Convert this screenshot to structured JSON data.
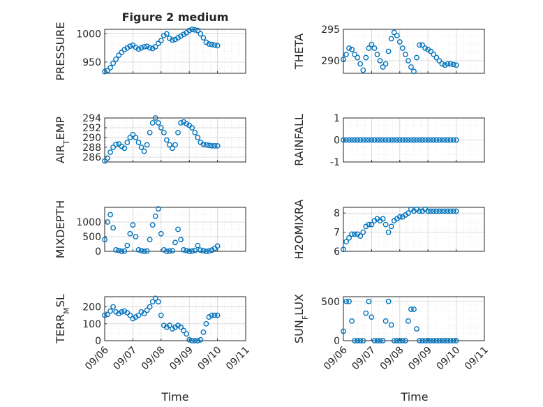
{
  "figure": {
    "title": "Figure 2 medium"
  },
  "xaxis": {
    "ticks": [
      "09/06",
      "09/07",
      "09/08",
      "09/09",
      "09/10",
      "09/11"
    ],
    "label": "Time"
  },
  "chart_data": [
    {
      "type": "scatter",
      "ylabel": "PRESSURE",
      "ylim": [
        930,
        1008
      ],
      "yticks": [
        950,
        1000
      ],
      "ytick_labels": [
        "950",
        "1000"
      ],
      "xlim": [
        0,
        5
      ],
      "grid": true,
      "marker": "o",
      "color": "#0072BD",
      "x": [
        0.0,
        0.1,
        0.2,
        0.3,
        0.4,
        0.5,
        0.6,
        0.7,
        0.8,
        0.9,
        1.0,
        1.1,
        1.2,
        1.3,
        1.4,
        1.5,
        1.6,
        1.7,
        1.8,
        1.9,
        2.0,
        2.1,
        2.2,
        2.3,
        2.4,
        2.5,
        2.6,
        2.7,
        2.8,
        2.9,
        3.0,
        3.1,
        3.2,
        3.3,
        3.4,
        3.5,
        3.6,
        3.7,
        3.8,
        3.9,
        4.0
      ],
      "y": [
        933,
        935,
        940,
        948,
        955,
        962,
        967,
        972,
        975,
        978,
        980,
        976,
        973,
        975,
        977,
        978,
        975,
        974,
        977,
        983,
        988,
        997,
        1000,
        992,
        989,
        990,
        993,
        996,
        999,
        1002,
        1006,
        1008,
        1007,
        1006,
        1000,
        993,
        985,
        982,
        981,
        980,
        979
      ]
    },
    {
      "type": "scatter",
      "ylabel": "THETA",
      "ylim": [
        288,
        295
      ],
      "yticks": [
        290,
        295
      ],
      "ytick_labels": [
        "290",
        "295"
      ],
      "xlim": [
        0,
        5
      ],
      "grid": true,
      "marker": "o",
      "color": "#0072BD",
      "x": [
        0.0,
        0.1,
        0.2,
        0.3,
        0.4,
        0.5,
        0.6,
        0.7,
        0.8,
        0.9,
        1.0,
        1.1,
        1.2,
        1.3,
        1.4,
        1.5,
        1.6,
        1.7,
        1.8,
        1.9,
        2.0,
        2.1,
        2.2,
        2.3,
        2.4,
        2.5,
        2.6,
        2.7,
        2.8,
        2.9,
        3.0,
        3.1,
        3.2,
        3.3,
        3.4,
        3.5,
        3.6,
        3.7,
        3.8,
        3.9,
        4.0
      ],
      "y": [
        290.2,
        291.0,
        292.0,
        291.8,
        291.0,
        290.5,
        289.5,
        288.5,
        290.5,
        292.0,
        292.6,
        292.0,
        291.0,
        290.0,
        289.0,
        289.5,
        291.5,
        293.5,
        294.5,
        294.0,
        293.0,
        292.0,
        291.0,
        290.0,
        289.0,
        288.3,
        290.5,
        292.5,
        292.5,
        292.0,
        291.8,
        291.5,
        291.0,
        290.5,
        290.0,
        289.5,
        289.3,
        289.5,
        289.5,
        289.4,
        289.3
      ]
    },
    {
      "type": "scatter",
      "ylabel": "AIR_TEMP",
      "ylabel_sub": "T",
      "ylim": [
        285,
        294
      ],
      "yticks": [
        286,
        288,
        290,
        292,
        294
      ],
      "ytick_labels": [
        "286",
        "288",
        "290",
        "292",
        "294"
      ],
      "xlim": [
        0,
        5
      ],
      "grid": true,
      "marker": "o",
      "color": "#0072BD",
      "x": [
        0.0,
        0.1,
        0.2,
        0.3,
        0.4,
        0.5,
        0.6,
        0.7,
        0.8,
        0.9,
        1.0,
        1.1,
        1.2,
        1.3,
        1.4,
        1.5,
        1.6,
        1.7,
        1.8,
        1.9,
        2.0,
        2.1,
        2.2,
        2.3,
        2.4,
        2.5,
        2.6,
        2.7,
        2.8,
        2.9,
        3.0,
        3.1,
        3.2,
        3.3,
        3.4,
        3.5,
        3.6,
        3.7,
        3.8,
        3.9,
        4.0
      ],
      "y": [
        285.2,
        285.8,
        287.0,
        288.0,
        288.6,
        288.7,
        288.2,
        287.8,
        289.0,
        290.0,
        290.6,
        290.0,
        289.0,
        288.0,
        287.2,
        288.5,
        291.0,
        293.0,
        294.0,
        293.0,
        292.0,
        291.0,
        289.5,
        288.5,
        287.8,
        288.5,
        291.0,
        293.0,
        293.2,
        292.8,
        292.5,
        292.0,
        291.0,
        290.0,
        289.0,
        288.6,
        288.5,
        288.4,
        288.3,
        288.3,
        288.3
      ]
    },
    {
      "type": "scatter",
      "ylabel": "RAINFALL",
      "ylim": [
        -1,
        1
      ],
      "yticks": [
        -1,
        0,
        1
      ],
      "ytick_labels": [
        "-1",
        "0",
        "1"
      ],
      "xlim": [
        0,
        5
      ],
      "grid": true,
      "marker": "o",
      "color": "#0072BD",
      "x": [
        0.0,
        0.1,
        0.2,
        0.3,
        0.4,
        0.5,
        0.6,
        0.7,
        0.8,
        0.9,
        1.0,
        1.1,
        1.2,
        1.3,
        1.4,
        1.5,
        1.6,
        1.7,
        1.8,
        1.9,
        2.0,
        2.1,
        2.2,
        2.3,
        2.4,
        2.5,
        2.6,
        2.7,
        2.8,
        2.9,
        3.0,
        3.1,
        3.2,
        3.3,
        3.4,
        3.5,
        3.6,
        3.7,
        3.8,
        3.9,
        4.0
      ],
      "y": [
        0,
        0,
        0,
        0,
        0,
        0,
        0,
        0,
        0,
        0,
        0,
        0,
        0,
        0,
        0,
        0,
        0,
        0,
        0,
        0,
        0,
        0,
        0,
        0,
        0,
        0,
        0,
        0,
        0,
        0,
        0,
        0,
        0,
        0,
        0,
        0,
        0,
        0,
        0,
        0,
        0
      ]
    },
    {
      "type": "scatter",
      "ylabel": "MIXDEPTH",
      "ylim": [
        0,
        1500
      ],
      "yticks": [
        0,
        500,
        1000
      ],
      "ytick_labels": [
        "0",
        "500",
        "1000"
      ],
      "xlim": [
        0,
        5
      ],
      "grid": true,
      "marker": "o",
      "color": "#0072BD",
      "x": [
        0.0,
        0.1,
        0.2,
        0.3,
        0.4,
        0.5,
        0.6,
        0.7,
        0.8,
        0.9,
        1.0,
        1.1,
        1.2,
        1.3,
        1.4,
        1.5,
        1.6,
        1.7,
        1.8,
        1.9,
        2.0,
        2.1,
        2.2,
        2.3,
        2.4,
        2.5,
        2.6,
        2.7,
        2.8,
        2.9,
        3.0,
        3.1,
        3.2,
        3.3,
        3.4,
        3.5,
        3.6,
        3.7,
        3.8,
        3.9,
        4.0
      ],
      "y": [
        400,
        1000,
        1250,
        800,
        50,
        30,
        0,
        10,
        200,
        600,
        900,
        500,
        50,
        20,
        0,
        10,
        400,
        900,
        1200,
        1450,
        600,
        50,
        0,
        10,
        20,
        300,
        750,
        400,
        50,
        20,
        0,
        10,
        30,
        200,
        40,
        20,
        0,
        10,
        40,
        100,
        180
      ]
    },
    {
      "type": "scatter",
      "ylabel": "H2OMIXRA",
      "ylim": [
        6,
        8.3
      ],
      "yticks": [
        6,
        7,
        8
      ],
      "ytick_labels": [
        "6",
        "7",
        "8"
      ],
      "xlim": [
        0,
        5
      ],
      "grid": true,
      "marker": "o",
      "color": "#0072BD",
      "x": [
        0.0,
        0.1,
        0.2,
        0.3,
        0.4,
        0.5,
        0.6,
        0.7,
        0.8,
        0.9,
        1.0,
        1.1,
        1.2,
        1.3,
        1.4,
        1.5,
        1.6,
        1.7,
        1.8,
        1.9,
        2.0,
        2.1,
        2.2,
        2.3,
        2.4,
        2.5,
        2.6,
        2.7,
        2.8,
        2.9,
        3.0,
        3.1,
        3.2,
        3.3,
        3.4,
        3.5,
        3.6,
        3.7,
        3.8,
        3.9,
        4.0
      ],
      "y": [
        6.1,
        6.5,
        6.7,
        6.9,
        6.9,
        6.9,
        6.8,
        7.0,
        7.3,
        7.4,
        7.4,
        7.6,
        7.7,
        7.6,
        7.7,
        7.4,
        7.0,
        7.3,
        7.6,
        7.7,
        7.8,
        7.8,
        7.9,
        8.0,
        8.2,
        8.1,
        8.2,
        8.1,
        8.1,
        8.2,
        8.1,
        8.1,
        8.1,
        8.1,
        8.1,
        8.1,
        8.1,
        8.1,
        8.1,
        8.1,
        8.1
      ]
    },
    {
      "type": "scatter",
      "ylabel": "TERR_MSL",
      "ylabel_sub": "M",
      "ylim": [
        0,
        260
      ],
      "yticks": [
        0,
        100,
        200
      ],
      "ytick_labels": [
        "0",
        "100",
        "200"
      ],
      "xlim": [
        0,
        5
      ],
      "grid": true,
      "marker": "o",
      "color": "#0072BD",
      "x": [
        0.0,
        0.1,
        0.2,
        0.3,
        0.4,
        0.5,
        0.6,
        0.7,
        0.8,
        0.9,
        1.0,
        1.1,
        1.2,
        1.3,
        1.4,
        1.5,
        1.6,
        1.7,
        1.8,
        1.9,
        2.0,
        2.1,
        2.2,
        2.3,
        2.4,
        2.5,
        2.6,
        2.7,
        2.8,
        2.9,
        3.0,
        3.1,
        3.2,
        3.3,
        3.4,
        3.5,
        3.6,
        3.7,
        3.8,
        3.9,
        4.0
      ],
      "y": [
        150,
        155,
        175,
        200,
        170,
        160,
        170,
        175,
        165,
        150,
        130,
        140,
        150,
        170,
        160,
        180,
        200,
        230,
        250,
        230,
        150,
        90,
        80,
        90,
        70,
        80,
        90,
        80,
        60,
        40,
        5,
        0,
        0,
        0,
        5,
        50,
        100,
        140,
        150,
        150,
        150
      ]
    },
    {
      "type": "scatter",
      "ylabel": "SUN_FLUX",
      "ylabel_sub": "F",
      "ylim": [
        0,
        560
      ],
      "yticks": [
        0,
        500
      ],
      "ytick_labels": [
        "0",
        "500"
      ],
      "xlim": [
        0,
        5
      ],
      "grid": true,
      "marker": "o",
      "color": "#0072BD",
      "x": [
        0.0,
        0.1,
        0.2,
        0.3,
        0.4,
        0.5,
        0.6,
        0.7,
        0.8,
        0.9,
        1.0,
        1.1,
        1.2,
        1.3,
        1.4,
        1.5,
        1.6,
        1.7,
        1.8,
        1.9,
        2.0,
        2.1,
        2.2,
        2.3,
        2.4,
        2.5,
        2.6,
        2.7,
        2.8,
        2.9,
        3.0,
        3.1,
        3.2,
        3.3,
        3.4,
        3.5,
        3.6,
        3.7,
        3.8,
        3.9,
        4.0
      ],
      "y": [
        120,
        500,
        500,
        250,
        0,
        0,
        0,
        0,
        350,
        500,
        300,
        0,
        0,
        0,
        0,
        250,
        500,
        200,
        0,
        0,
        0,
        0,
        0,
        250,
        400,
        400,
        150,
        0,
        0,
        0,
        0,
        0,
        0,
        0,
        0,
        0,
        0,
        0,
        0,
        0,
        0
      ]
    }
  ]
}
